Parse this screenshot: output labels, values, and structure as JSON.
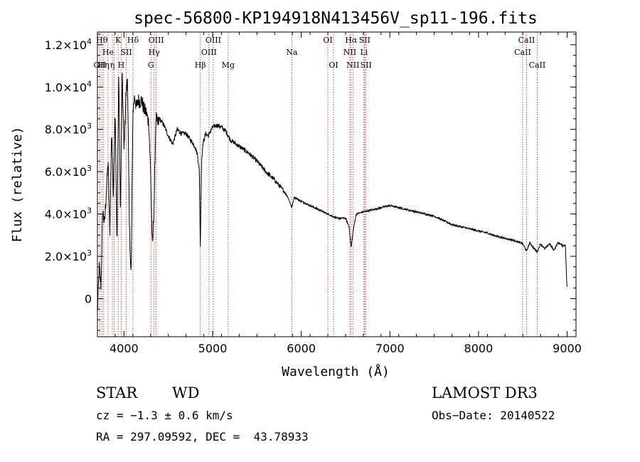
{
  "chart_data": {
    "type": "line",
    "title": "spec-56800-KP194918N413456V_sp11-196.fits",
    "xlabel": "Wavelength (Å)",
    "ylabel": "Flux (relative)",
    "xlim": [
      3700,
      9100
    ],
    "ylim": [
      -1800,
      12600
    ],
    "x_ticks": [
      {
        "value": 4000,
        "label": "4000"
      },
      {
        "value": 5000,
        "label": "5000"
      },
      {
        "value": 6000,
        "label": "6000"
      },
      {
        "value": 7000,
        "label": "7000"
      },
      {
        "value": 8000,
        "label": "8000"
      },
      {
        "value": 9000,
        "label": "9000"
      }
    ],
    "y_ticks": [
      {
        "value": 0,
        "mant": "0",
        "exp": ""
      },
      {
        "value": 2000,
        "mant": "2.0×10",
        "exp": "3"
      },
      {
        "value": 4000,
        "mant": "4.0×10",
        "exp": "3"
      },
      {
        "value": 6000,
        "mant": "6.0×10",
        "exp": "3"
      },
      {
        "value": 8000,
        "mant": "8.0×10",
        "exp": "3"
      },
      {
        "value": 10000,
        "mant": "1.0×10",
        "exp": "4"
      },
      {
        "value": 12000,
        "mant": "1.2×10",
        "exp": "4"
      }
    ],
    "series": [
      {
        "name": "flux",
        "x": [
          3700,
          3720,
          3740,
          3760,
          3780,
          3800,
          3820,
          3840,
          3860,
          3880,
          3900,
          3920,
          3940,
          3960,
          3980,
          4000,
          4020,
          4040,
          4060,
          4080,
          4100,
          4120,
          4140,
          4160,
          4180,
          4200,
          4220,
          4250,
          4280,
          4300,
          4320,
          4340,
          4360,
          4380,
          4400,
          4450,
          4500,
          4550,
          4600,
          4650,
          4700,
          4750,
          4800,
          4830,
          4850,
          4861,
          4875,
          4890,
          4920,
          4950,
          5000,
          5050,
          5100,
          5150,
          5200,
          5300,
          5400,
          5500,
          5600,
          5700,
          5800,
          5850,
          5893,
          5920,
          6000,
          6100,
          6200,
          6300,
          6400,
          6500,
          6540,
          6563,
          6585,
          6620,
          6700,
          6800,
          6900,
          7000,
          7100,
          7200,
          7300,
          7400,
          7500,
          7600,
          7700,
          7800,
          7900,
          8000,
          8100,
          8200,
          8300,
          8400,
          8498,
          8542,
          8580,
          8620,
          8662,
          8700,
          8750,
          8800,
          8850,
          8900,
          8950,
          8980,
          9000
        ],
        "y": [
          -700,
          1500,
          600,
          4200,
          3500,
          5000,
          6500,
          3000,
          8000,
          5000,
          9000,
          2500,
          10500,
          4000,
          10700,
          7000,
          9500,
          10500,
          3500,
          1000,
          8800,
          9600,
          9000,
          9400,
          9300,
          9400,
          9000,
          8800,
          8300,
          6000,
          2300,
          4500,
          8600,
          8200,
          8500,
          8200,
          7700,
          7300,
          8000,
          7800,
          7800,
          7500,
          7200,
          6800,
          6000,
          2400,
          6500,
          7300,
          7800,
          7700,
          8100,
          8200,
          8100,
          7900,
          7500,
          7200,
          6900,
          6500,
          6000,
          5600,
          5100,
          4800,
          4300,
          4800,
          4600,
          4400,
          4200,
          4000,
          3800,
          3800,
          3400,
          2400,
          3200,
          4000,
          4100,
          4200,
          4300,
          4400,
          4300,
          4200,
          4100,
          4000,
          3900,
          3700,
          3500,
          3400,
          3300,
          3200,
          3100,
          2950,
          2850,
          2750,
          2600,
          2250,
          2650,
          2400,
          2200,
          2600,
          2350,
          2600,
          2300,
          2650,
          2500,
          2550,
          300
        ]
      }
    ],
    "lines": [
      {
        "wave": 3727,
        "label": "OII",
        "row": 2
      },
      {
        "wave": 3750,
        "label": "Hθ",
        "row": 0
      },
      {
        "wave": 3770,
        "label": "Hη",
        "row": 2
      },
      {
        "wave": 3820,
        "label": "He",
        "row": 1
      },
      {
        "wave": 3869,
        "label": "η",
        "row": 2
      },
      {
        "wave": 3889,
        "label": "",
        "row": 0
      },
      {
        "wave": 3934,
        "label": "K",
        "row": 0
      },
      {
        "wave": 3968,
        "label": "H",
        "row": 2
      },
      {
        "wave": 4026,
        "label": "SII",
        "row": 1
      },
      {
        "wave": 4101,
        "label": "Hδ",
        "row": 0
      },
      {
        "wave": 4304,
        "label": "G",
        "row": 2
      },
      {
        "wave": 4340,
        "label": "Hγ",
        "row": 1
      },
      {
        "wave": 4363,
        "label": "OIII",
        "row": 0
      },
      {
        "wave": 4861,
        "label": "Hβ",
        "row": 2
      },
      {
        "wave": 4959,
        "label": "OIII",
        "row": 1
      },
      {
        "wave": 5007,
        "label": "OIII",
        "row": 0
      },
      {
        "wave": 5175,
        "label": "Mg",
        "row": 2
      },
      {
        "wave": 5893,
        "label": "Na",
        "row": 1
      },
      {
        "wave": 6300,
        "label": "OI",
        "row": 0
      },
      {
        "wave": 6364,
        "label": "OI",
        "row": 2
      },
      {
        "wave": 6548,
        "label": "NII",
        "row": 1
      },
      {
        "wave": 6563,
        "label": "Hα",
        "row": 0
      },
      {
        "wave": 6583,
        "label": "NII",
        "row": 2
      },
      {
        "wave": 6708,
        "label": "Li",
        "row": 1
      },
      {
        "wave": 6716,
        "label": "SII",
        "row": 0
      },
      {
        "wave": 6731,
        "label": "SII",
        "row": 2
      },
      {
        "wave": 8498,
        "label": "CaII",
        "row": 1
      },
      {
        "wave": 8542,
        "label": "CaII",
        "row": 0
      },
      {
        "wave": 8662,
        "label": "CaII",
        "row": 2
      }
    ]
  },
  "info": {
    "class": "STAR",
    "subclass": "WD",
    "survey": "LAMOST DR3",
    "cz": "cz = −1.3 ± 0.6 km/s",
    "obs_date": "Obs−Date: 20140522",
    "radec": "RA = 297.09592, DEC =  43.78933"
  }
}
